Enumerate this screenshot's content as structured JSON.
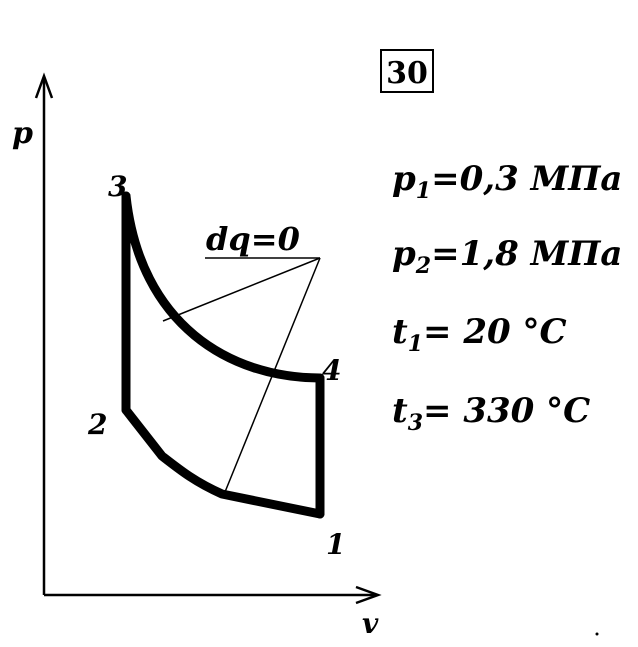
{
  "problem_number": "30",
  "axes": {
    "y_label": "p",
    "x_label": "v"
  },
  "point_labels": {
    "p1": "1",
    "p2": "2",
    "p3": "3",
    "p4": "4"
  },
  "annotation": "dq=0",
  "given": [
    {
      "sym": "p",
      "sub": "1",
      "rest": "=0,3 МПа"
    },
    {
      "sym": "p",
      "sub": "2",
      "rest": "=1,8 МПа"
    },
    {
      "sym": "t",
      "sub": "1",
      "rest": "= 20 °C"
    },
    {
      "sym": "t",
      "sub": "3",
      "rest": "= 330 °C"
    }
  ],
  "colors": {
    "ink": "#000000",
    "background": "#ffffff"
  }
}
